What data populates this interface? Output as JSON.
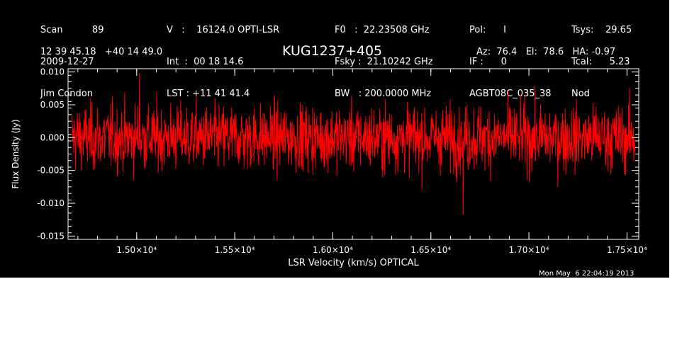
{
  "header": {
    "col1": [
      "Scan          89",
      "2009-12-27",
      "Jim Condon"
    ],
    "col2": [
      "V   :    16124.0 OPTI-LSR",
      "Int  :  00 18 14.6",
      "LST : +11 41 41.4"
    ],
    "col3": [
      "F0   :  22.23508 GHz",
      "Fsky :  21.10242 GHz",
      "BW   : 200.0000 MHz"
    ],
    "col4": [
      "Pol:      I",
      "IF :      0",
      "AGBT08C_035_38"
    ],
    "col5": [
      "Tsys:    29.65",
      "Tcal:      5.23",
      "Nod"
    ],
    "coords": "12 39 45.18   +40 14 49.0",
    "source": "KUG1237+405",
    "pointing": "Az:  76.4   El:  78.6   HA: -0.97"
  },
  "timestamp": "Mon May  6 22:04:19 2013",
  "colors": {
    "background": "#000000",
    "trace": "#ff0000",
    "axes": "#ffffff"
  },
  "chart_data": {
    "type": "line",
    "title": "KUG1237+405",
    "xlabel": "LSR Velocity (km/s) OPTICAL",
    "ylabel": "Flux Density (Jy)",
    "xlim": [
      14650,
      17560
    ],
    "ylim": [
      -0.0155,
      0.0105
    ],
    "xticks": [
      15000,
      15500,
      16000,
      16500,
      17000,
      17500
    ],
    "xtick_labels": [
      "1.50×10⁴",
      "1.55×10⁴",
      "1.60×10⁴",
      "1.65×10⁴",
      "1.70×10⁴",
      "1.75×10⁴"
    ],
    "yticks": [
      0.01,
      0.005,
      0.0,
      -0.005,
      -0.01,
      -0.015
    ],
    "ytick_labels": [
      "0.010",
      "0.005",
      "0.000",
      "-0.005",
      "-0.010",
      "-0.015"
    ],
    "grid": false,
    "series": [
      {
        "color": "#ff0000",
        "noise_rms_jy": 0.0025,
        "mean_jy": 0.0,
        "x_start": 14670,
        "x_end": 17540,
        "y_min_spike": -0.0117,
        "y_max_spike": 0.0098
      }
    ]
  }
}
